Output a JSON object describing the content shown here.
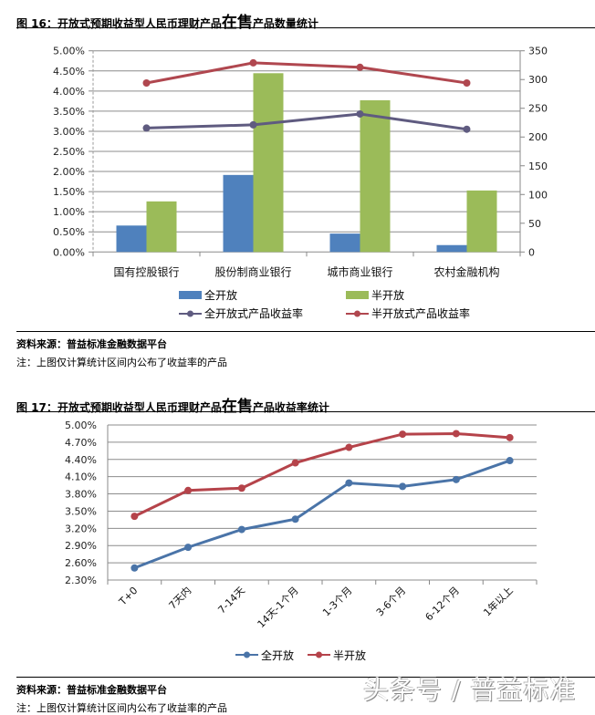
{
  "fig16": {
    "title_prefix": "图 16：开放式预期收益型人民币理财产品",
    "title_big": "在售",
    "title_suffix": "产品数量统计",
    "source": "资料来源：普益标准金融数据平台",
    "note": "注：上图仅计算统计区间内公布了收益率的产品"
  },
  "fig17": {
    "title_prefix": "图 17：开放式预期收益型人民币理财产品",
    "title_big": "在售",
    "title_suffix": "产品收益率统计",
    "source": "资料来源：普益标准金融数据平台",
    "note": "注：上图仅计算统计区间内公布了收益率的产品"
  },
  "watermark": "头条号 / 普益标准",
  "colors": {
    "blue_bar": "#4f81bd",
    "green_bar": "#9bbb59",
    "gray_line": "#5f5b80",
    "red_line": "#b0474f",
    "blue_line": "#4a74a8",
    "red_line2": "#b5434a",
    "grid": "#8c8c8c"
  },
  "chart_data": [
    {
      "type": "bar",
      "title": "图 16：开放式预期收益型人民币理财产品在售产品数量统计",
      "categories": [
        "国有控股银行",
        "股份制商业银行",
        "城市商业银行",
        "农村金融机构"
      ],
      "series": [
        {
          "name": "全开放",
          "type": "bar",
          "axis": "right",
          "values": [
            46,
            134,
            32,
            12
          ]
        },
        {
          "name": "半开放",
          "type": "bar",
          "axis": "right",
          "values": [
            88,
            311,
            264,
            107
          ]
        },
        {
          "name": "全开放式产品收益率",
          "type": "line",
          "axis": "left",
          "values": [
            3.08,
            3.16,
            3.43,
            3.05
          ]
        },
        {
          "name": "半开放式产品收益率",
          "type": "line",
          "axis": "left",
          "values": [
            4.2,
            4.7,
            4.59,
            4.2
          ]
        }
      ],
      "left_axis": {
        "ylim": [
          0,
          5.0
        ],
        "ticks": [
          "0.00%",
          "0.50%",
          "1.00%",
          "1.50%",
          "2.00%",
          "2.50%",
          "3.00%",
          "3.50%",
          "4.00%",
          "4.50%",
          "5.00%"
        ]
      },
      "right_axis": {
        "ylim": [
          0,
          350
        ],
        "ticks": [
          "0",
          "50",
          "100",
          "150",
          "200",
          "250",
          "300",
          "350"
        ]
      },
      "legend": [
        "全开放",
        "半开放",
        "全开放式产品收益率",
        "半开放式产品收益率"
      ],
      "legend_position": "bottom",
      "grid": true
    },
    {
      "type": "line",
      "title": "图 17：开放式预期收益型人民币理财产品在售产品收益率统计",
      "categories": [
        "T+0",
        "7天内",
        "7-14天",
        "14天-1个月",
        "1-3个月",
        "3-6个月",
        "6-12个月",
        "1年以上"
      ],
      "series": [
        {
          "name": "全开放",
          "values": [
            2.51,
            2.87,
            3.18,
            3.36,
            3.99,
            3.93,
            4.05,
            4.38
          ]
        },
        {
          "name": "半开放",
          "values": [
            3.41,
            3.86,
            3.9,
            4.34,
            4.61,
            4.84,
            4.85,
            4.78
          ]
        }
      ],
      "ylim": [
        2.3,
        5.0
      ],
      "yticks": [
        "2.30%",
        "2.60%",
        "2.90%",
        "3.20%",
        "3.50%",
        "3.80%",
        "4.10%",
        "4.40%",
        "4.70%",
        "5.00%"
      ],
      "legend": [
        "全开放",
        "半开放"
      ],
      "legend_position": "bottom",
      "grid": true
    }
  ]
}
